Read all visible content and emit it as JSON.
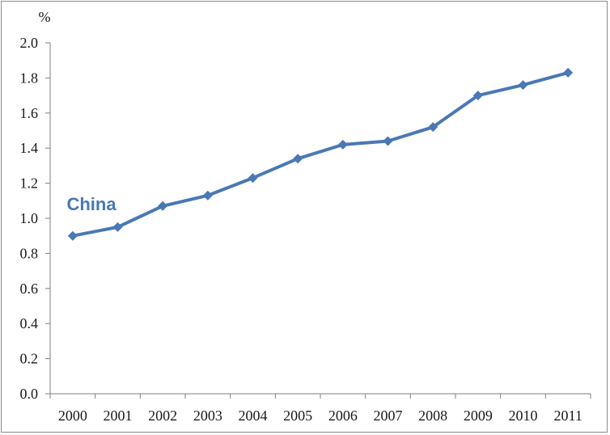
{
  "chart_data": {
    "type": "line",
    "unit_label": "%",
    "x": [
      "2000",
      "2001",
      "2002",
      "2003",
      "2004",
      "2005",
      "2006",
      "2007",
      "2008",
      "2009",
      "2010",
      "2011"
    ],
    "series": [
      {
        "name": "China",
        "values": [
          0.9,
          0.95,
          1.07,
          1.13,
          1.23,
          1.34,
          1.42,
          1.44,
          1.52,
          1.7,
          1.76,
          1.83
        ]
      }
    ],
    "ylim": [
      0.0,
      2.0
    ],
    "yticks": [
      "0.0",
      "0.2",
      "0.4",
      "0.6",
      "0.8",
      "1.0",
      "1.2",
      "1.4",
      "1.6",
      "1.8",
      "2.0"
    ],
    "grid": false,
    "legend": "none",
    "colors": {
      "series": "#4a78b5",
      "axis": "#7f7f7f",
      "text": "#1a1a1a"
    }
  }
}
